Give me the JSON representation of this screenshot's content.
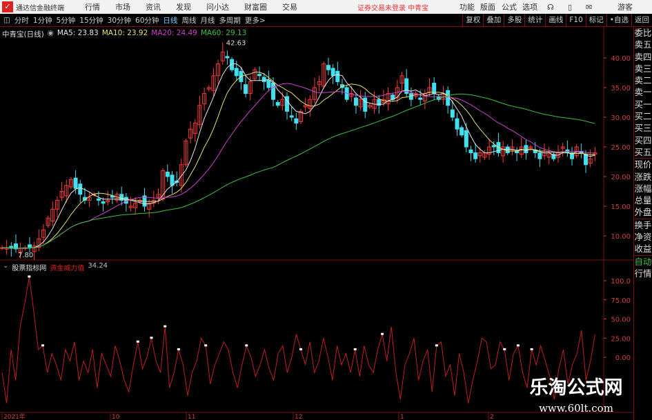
{
  "menubar": {
    "app_title": "通达信金融终端",
    "menus": [
      "行情",
      "市场",
      "资讯",
      "发现",
      "问小达",
      "财富圈",
      "交易"
    ],
    "warning": "证券交易未登录  中青宝",
    "right": [
      "功能",
      "版面",
      "公式",
      "选项"
    ],
    "guest": "游客"
  },
  "toolbar": {
    "periods": [
      "分时",
      "1分钟",
      "5分钟",
      "15分钟",
      "30分钟",
      "60分钟",
      "日线",
      "周线",
      "月线",
      "多周期",
      "更多>"
    ],
    "active": "日线",
    "right_buttons": [
      "复权",
      "叠加",
      "多股",
      "统计",
      "画线",
      "F10",
      "标记",
      "•自选",
      "返回"
    ]
  },
  "legend": {
    "title": "中青宝(日线)",
    "ma5": "MA5: 23.83",
    "ma10": "MA10: 23.92",
    "ma20": "MA20: 24.49",
    "ma60": "MA60: 29.13"
  },
  "colors": {
    "up": "#ff3a3a",
    "down": "#40e0f0",
    "ma5": "#e8e8e8",
    "ma10": "#e8e070",
    "ma20": "#d040d0",
    "ma60": "#40c040",
    "grid": "#7a1010",
    "axis": "#d04040"
  },
  "side_panel": [
    "委比",
    "卖五",
    "卖四",
    "卖三",
    "卖二",
    "卖一",
    "买一",
    "买二",
    "买三",
    "买四",
    "买五",
    "现价",
    "涨跌",
    "涨幅",
    "总量",
    "外盘",
    "换手",
    "净资",
    "收益",
    "自动",
    "行情"
  ],
  "indicator": {
    "source": "股票指标网",
    "name": "资金威力值",
    "value": "34.24"
  },
  "watermark": {
    "name": "乐淘公式网",
    "url": "www.60lt.com"
  },
  "chart_data": {
    "type": "candlestick",
    "price_axis": {
      "ticks": [
        "40.00",
        "35.00",
        "30.00",
        "25.00",
        "20.00",
        "15.00",
        "10.00"
      ]
    },
    "annotations": {
      "high": "42.63",
      "low": "7.80"
    },
    "closes": [
      8.0,
      8.0,
      7.9,
      7.8,
      7.9,
      8.0,
      8.1,
      8.3,
      9.5,
      11,
      13,
      14.5,
      16,
      17.5,
      18.5,
      19.5,
      18,
      17,
      16,
      16.5,
      17,
      16,
      15.5,
      16,
      16.5,
      17,
      16,
      15.5,
      15,
      15.5,
      16,
      15,
      15.5,
      16,
      17,
      21,
      20,
      18.5,
      19,
      22,
      26,
      28,
      29,
      32,
      34,
      35,
      37,
      39,
      41,
      40,
      38,
      37,
      36,
      34,
      36,
      38,
      37,
      36,
      35,
      33,
      32,
      33,
      31,
      30,
      29,
      31,
      32,
      33,
      35,
      36,
      39,
      38,
      37,
      36,
      35,
      33,
      34,
      32,
      33,
      31,
      32,
      33,
      32,
      33,
      34,
      33,
      35,
      37,
      34,
      33,
      34,
      33,
      34,
      35,
      34,
      33,
      34,
      32,
      30,
      28,
      27,
      25,
      24,
      23,
      24,
      24,
      25,
      25,
      24,
      25,
      24,
      25,
      24,
      25,
      24,
      25,
      24,
      23,
      24,
      24,
      23,
      24,
      25,
      24,
      23,
      25,
      24,
      22,
      23,
      24
    ],
    "indicator_axis": {
      "ticks": [
        "100.0",
        "75.00",
        "50.00",
        "25.00",
        "0.00"
      ]
    },
    "indicator_values": [
      -20,
      -60,
      10,
      -30,
      40,
      70,
      105,
      60,
      10,
      15,
      -20,
      5,
      -10,
      -30,
      10,
      -5,
      20,
      -30,
      -5,
      -20,
      10,
      -40,
      5,
      -10,
      -25,
      15,
      -5,
      -30,
      -45,
      -10,
      20,
      -15,
      0,
      25,
      -5,
      -20,
      40,
      -40,
      -20,
      10,
      -10,
      -50,
      -20,
      -5,
      25,
      15,
      -35,
      -10,
      5,
      20,
      10,
      -20,
      -40,
      -10,
      15,
      0,
      -25,
      -10,
      10,
      -15,
      -30,
      5,
      15,
      -20,
      0,
      30,
      10,
      -10,
      20,
      -20,
      -5,
      25,
      0,
      -30,
      15,
      -10,
      5,
      -20,
      10,
      -25,
      15,
      -10,
      -20,
      10,
      30,
      -5,
      40,
      -20,
      -55,
      -10,
      5,
      25,
      -30,
      -5,
      10,
      -45,
      15,
      20,
      -25,
      -10,
      -50,
      5,
      -20,
      -60,
      -30,
      -5,
      25,
      20,
      -15,
      -10,
      20,
      10,
      -30,
      5,
      15,
      -20,
      -40,
      10,
      -10,
      15,
      -5,
      -25,
      -55,
      -15,
      10,
      -35,
      -10,
      5,
      35,
      -30,
      -5,
      30
    ]
  },
  "date_axis": [
    "2021年",
    "10",
    "11",
    "12",
    "1",
    "2"
  ]
}
